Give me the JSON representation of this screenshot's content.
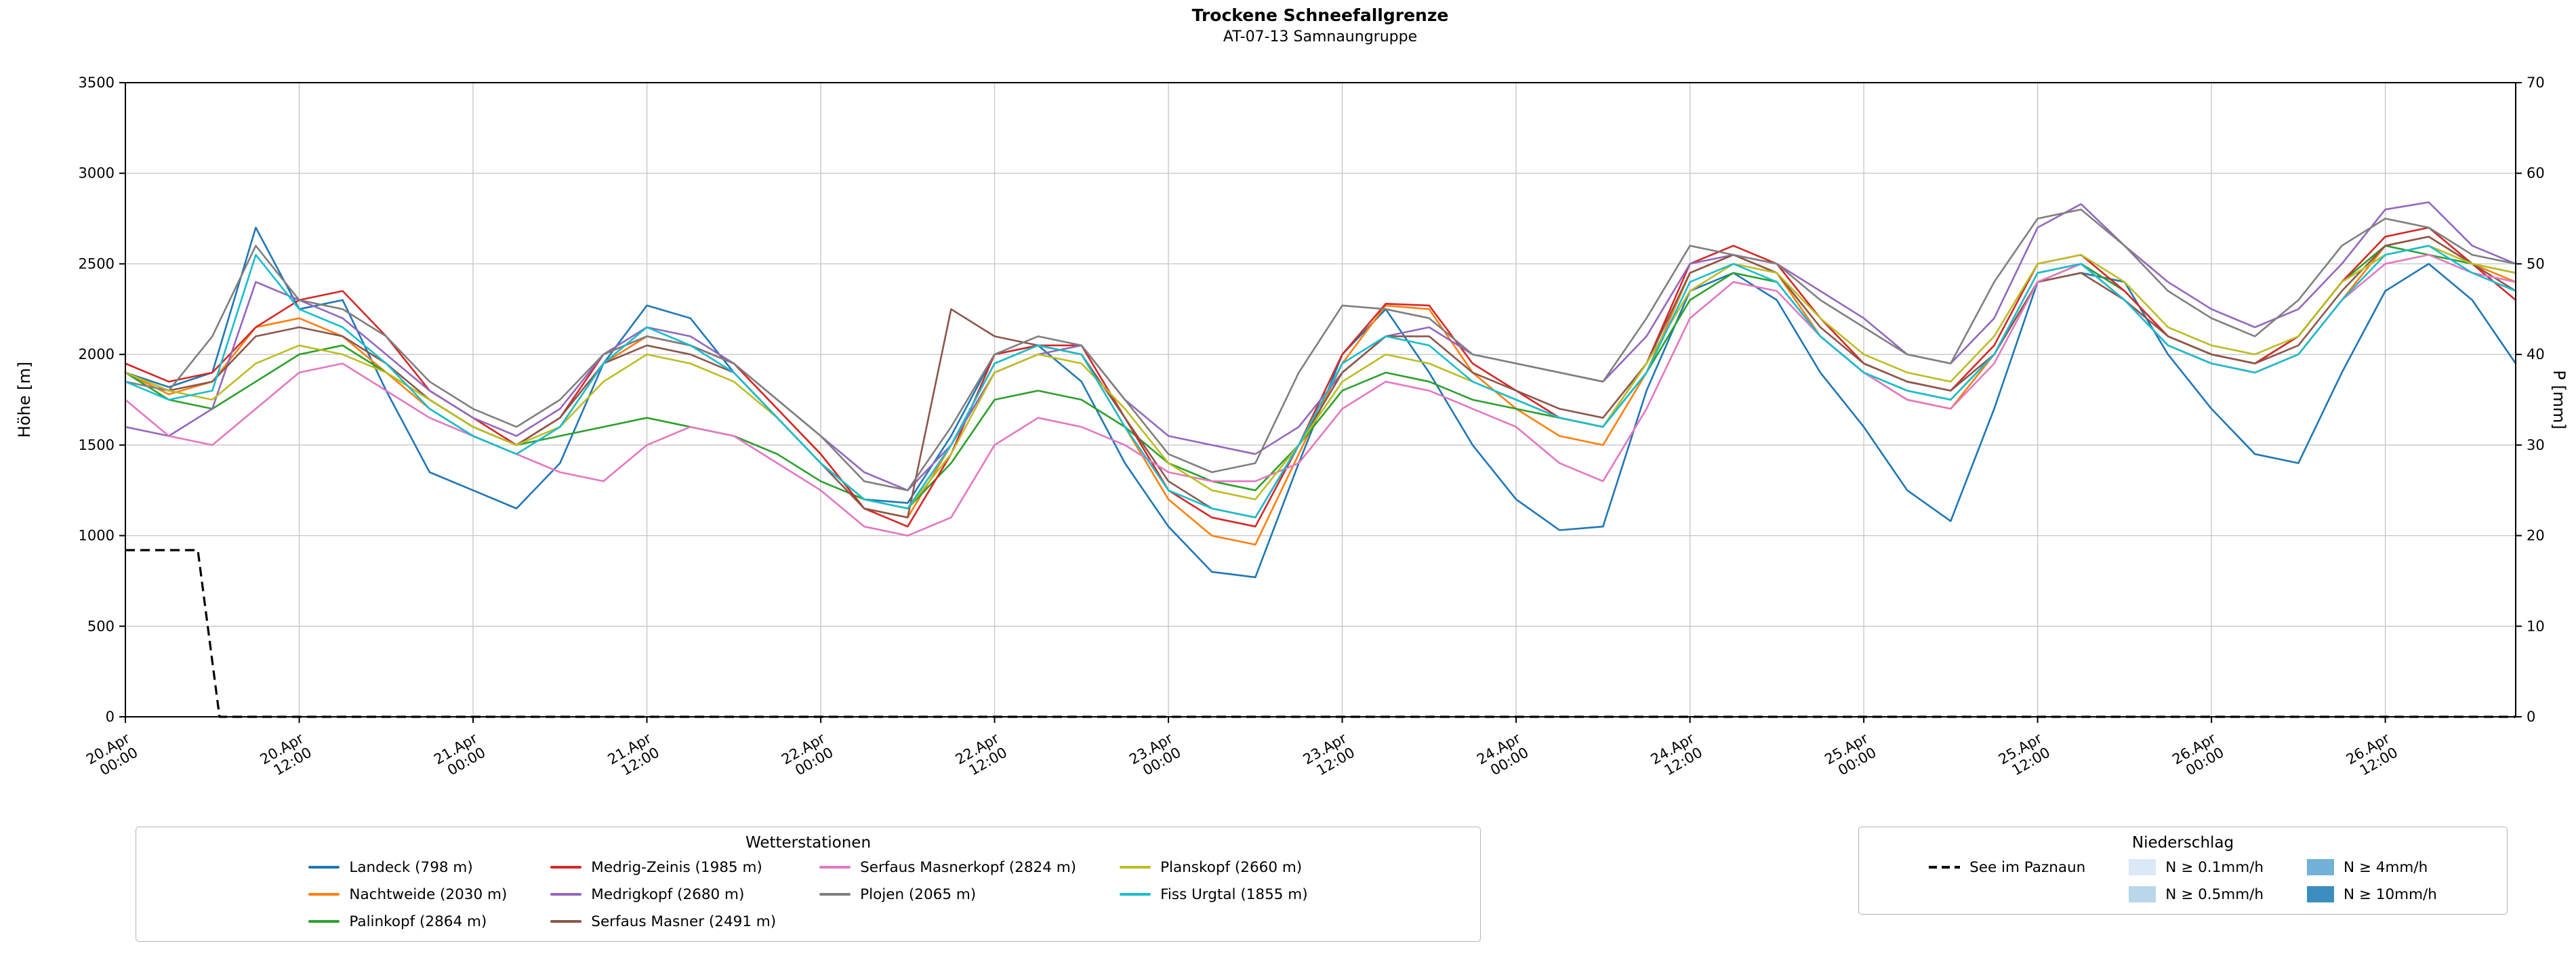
{
  "title": "Trockene Schneefallgrenze",
  "subtitle": "AT-07-13 Samnaungruppe",
  "chart_data": {
    "type": "line",
    "title": "Trockene Schneefallgrenze",
    "subtitle": "AT-07-13 Samnaungruppe",
    "ylabel_left": "Höhe [m]",
    "ylabel_right": "P [mm]",
    "ylim_left": [
      0,
      3500
    ],
    "ylim_right": [
      0,
      70
    ],
    "yticks_left": [
      0,
      500,
      1000,
      1500,
      2000,
      2500,
      3000,
      3500
    ],
    "yticks_right": [
      0,
      10,
      20,
      30,
      40,
      50,
      60,
      70
    ],
    "grid": true,
    "x_unit": "hours since 20.Apr 00:00",
    "x_hours": [
      0,
      3,
      6,
      9,
      12,
      15,
      18,
      21,
      24,
      27,
      30,
      33,
      36,
      39,
      42,
      45,
      48,
      51,
      54,
      57,
      60,
      63,
      66,
      69,
      72,
      75,
      78,
      81,
      84,
      87,
      90,
      93,
      96,
      99,
      102,
      105,
      108,
      111,
      114,
      117,
      120,
      123,
      126,
      129,
      132,
      135,
      138,
      141,
      144,
      147,
      150,
      153,
      156,
      159,
      162,
      165
    ],
    "x_ticks": [
      {
        "h": 0,
        "date": "20.Apr",
        "time": "00:00"
      },
      {
        "h": 12,
        "date": "20.Apr",
        "time": "12:00"
      },
      {
        "h": 24,
        "date": "21.Apr",
        "time": "00:00"
      },
      {
        "h": 36,
        "date": "21.Apr",
        "time": "12:00"
      },
      {
        "h": 48,
        "date": "22.Apr",
        "time": "00:00"
      },
      {
        "h": 60,
        "date": "22.Apr",
        "time": "12:00"
      },
      {
        "h": 72,
        "date": "23.Apr",
        "time": "00:00"
      },
      {
        "h": 84,
        "date": "23.Apr",
        "time": "12:00"
      },
      {
        "h": 96,
        "date": "24.Apr",
        "time": "00:00"
      },
      {
        "h": 108,
        "date": "24.Apr",
        "time": "12:00"
      },
      {
        "h": 120,
        "date": "25.Apr",
        "time": "00:00"
      },
      {
        "h": 132,
        "date": "25.Apr",
        "time": "12:00"
      },
      {
        "h": 144,
        "date": "26.Apr",
        "time": "00:00"
      },
      {
        "h": 156,
        "date": "26.Apr",
        "time": "12:00"
      }
    ],
    "series": [
      {
        "name": "Landeck (798 m)",
        "color": "#1f77b4",
        "values": [
          1900,
          1820,
          1900,
          2700,
          2250,
          2300,
          1800,
          1350,
          1250,
          1150,
          1400,
          1950,
          2270,
          2200,
          1900,
          1650,
          1400,
          1200,
          1180,
          1550,
          2000,
          2050,
          1850,
          1400,
          1050,
          800,
          770,
          1400,
          2000,
          2250,
          1900,
          1500,
          1200,
          1030,
          1050,
          1800,
          2350,
          2450,
          2300,
          1900,
          1600,
          1250,
          1080,
          1700,
          2400,
          2450,
          2400,
          2000,
          1700,
          1450,
          1400,
          1900,
          2350,
          2500,
          2300,
          1950
        ]
      },
      {
        "name": "Nachtweide (2030 m)",
        "color": "#ff7f0e",
        "values": [
          1900,
          1780,
          1850,
          2150,
          2200,
          2100,
          1900,
          1700,
          1550,
          1450,
          1600,
          1950,
          2100,
          2050,
          1950,
          1700,
          1450,
          1150,
          1100,
          1500,
          1950,
          2050,
          2000,
          1600,
          1200,
          1000,
          950,
          1450,
          1950,
          2270,
          2250,
          1900,
          1700,
          1550,
          1500,
          1900,
          2450,
          2550,
          2450,
          2100,
          1900,
          1750,
          1700,
          2000,
          2450,
          2500,
          2300,
          2050,
          1950,
          1900,
          2000,
          2300,
          2600,
          2650,
          2500,
          2400
        ]
      },
      {
        "name": "Palinkopf (2864 m)",
        "color": "#2ca02c",
        "values": [
          1900,
          1750,
          1700,
          1850,
          2000,
          2050,
          1900,
          1750,
          1600,
          1500,
          1550,
          1600,
          1650,
          1600,
          1550,
          1450,
          1300,
          1200,
          1150,
          1400,
          1750,
          1800,
          1750,
          1600,
          1400,
          1300,
          1250,
          1500,
          1800,
          1900,
          1850,
          1750,
          1700,
          1650,
          1600,
          1900,
          2300,
          2450,
          2400,
          2100,
          1900,
          1800,
          1750,
          2000,
          2400,
          2500,
          2350,
          2100,
          2000,
          1950,
          2100,
          2400,
          2600,
          2550,
          2500,
          2450
        ]
      },
      {
        "name": "Medrig-Zeinis (1985 m)",
        "color": "#d62728",
        "values": [
          1950,
          1850,
          1900,
          2150,
          2300,
          2350,
          2100,
          1800,
          1650,
          1500,
          1650,
          2000,
          2100,
          2050,
          1950,
          1700,
          1450,
          1150,
          1050,
          1450,
          2000,
          2050,
          2050,
          1650,
          1250,
          1100,
          1050,
          1500,
          2000,
          2280,
          2270,
          1950,
          1800,
          1650,
          1600,
          1950,
          2500,
          2600,
          2500,
          2200,
          1950,
          1850,
          1800,
          2050,
          2500,
          2550,
          2350,
          2100,
          2000,
          1950,
          2100,
          2400,
          2650,
          2700,
          2500,
          2300
        ]
      },
      {
        "name": "Medrigkopf (2680 m)",
        "color": "#9467bd",
        "values": [
          1600,
          1550,
          1700,
          2400,
          2300,
          2200,
          2000,
          1800,
          1650,
          1550,
          1700,
          2000,
          2150,
          2100,
          1950,
          1750,
          1550,
          1350,
          1250,
          1500,
          1900,
          2000,
          2050,
          1750,
          1550,
          1500,
          1450,
          1600,
          1900,
          2100,
          2150,
          2000,
          1950,
          1900,
          1850,
          2100,
          2500,
          2550,
          2500,
          2350,
          2200,
          2000,
          1950,
          2200,
          2700,
          2830,
          2600,
          2400,
          2250,
          2150,
          2250,
          2500,
          2800,
          2840,
          2600,
          2500
        ]
      },
      {
        "name": "Serfaus Masner (2491 m)",
        "color": "#8c564b",
        "values": [
          1900,
          1800,
          1850,
          2100,
          2150,
          2100,
          1950,
          1750,
          1600,
          1500,
          1650,
          1950,
          2050,
          2000,
          1900,
          1650,
          1400,
          1150,
          1100,
          2250,
          2100,
          2050,
          2000,
          1650,
          1300,
          1150,
          1100,
          1500,
          1900,
          2100,
          2100,
          1900,
          1800,
          1700,
          1650,
          1950,
          2450,
          2550,
          2450,
          2150,
          1950,
          1850,
          1800,
          2000,
          2400,
          2450,
          2300,
          2100,
          2000,
          1950,
          2050,
          2350,
          2600,
          2650,
          2500,
          2350
        ]
      },
      {
        "name": "Serfaus Masnerkopf (2824 m)",
        "color": "#e377c2",
        "values": [
          1750,
          1550,
          1500,
          1700,
          1900,
          1950,
          1800,
          1650,
          1550,
          1450,
          1350,
          1300,
          1500,
          1600,
          1550,
          1400,
          1250,
          1050,
          1000,
          1100,
          1500,
          1650,
          1600,
          1500,
          1350,
          1300,
          1300,
          1400,
          1700,
          1850,
          1800,
          1700,
          1600,
          1400,
          1300,
          1700,
          2200,
          2400,
          2350,
          2100,
          1900,
          1750,
          1700,
          1950,
          2400,
          2500,
          2300,
          2050,
          1950,
          1900,
          2000,
          2300,
          2500,
          2550,
          2450,
          2400
        ]
      },
      {
        "name": "Plojen (2065 m)",
        "color": "#7f7f7f",
        "values": [
          1850,
          1800,
          2100,
          2600,
          2300,
          2250,
          2100,
          1850,
          1700,
          1600,
          1750,
          2000,
          2100,
          2050,
          1950,
          1750,
          1550,
          1300,
          1250,
          1600,
          2000,
          2100,
          2050,
          1750,
          1450,
          1350,
          1400,
          1900,
          2270,
          2250,
          2200,
          2000,
          1950,
          1900,
          1850,
          2200,
          2600,
          2550,
          2500,
          2300,
          2150,
          2000,
          1950,
          2400,
          2750,
          2800,
          2600,
          2350,
          2200,
          2100,
          2300,
          2600,
          2750,
          2700,
          2550,
          2500
        ]
      },
      {
        "name": "Planskopf (2660 m)",
        "color": "#bcbd22",
        "values": [
          1900,
          1800,
          1750,
          1950,
          2050,
          2000,
          1900,
          1750,
          1600,
          1500,
          1600,
          1850,
          2000,
          1950,
          1850,
          1650,
          1400,
          1200,
          1150,
          1450,
          1900,
          2000,
          1950,
          1700,
          1400,
          1250,
          1200,
          1500,
          1850,
          2000,
          1950,
          1850,
          1750,
          1650,
          1600,
          1950,
          2350,
          2500,
          2450,
          2200,
          2000,
          1900,
          1850,
          2100,
          2500,
          2550,
          2400,
          2150,
          2050,
          2000,
          2100,
          2400,
          2550,
          2600,
          2500,
          2450
        ]
      },
      {
        "name": "Fiss Urgtal  (1855 m)",
        "color": "#17becf",
        "values": [
          1850,
          1750,
          1800,
          2550,
          2250,
          2150,
          1950,
          1700,
          1550,
          1450,
          1600,
          1950,
          2150,
          2050,
          1900,
          1650,
          1400,
          1200,
          1150,
          1500,
          1950,
          2050,
          2000,
          1600,
          1250,
          1150,
          1100,
          1500,
          1950,
          2100,
          2050,
          1850,
          1750,
          1650,
          1600,
          1900,
          2400,
          2500,
          2400,
          2100,
          1900,
          1800,
          1750,
          2000,
          2450,
          2500,
          2300,
          2050,
          1950,
          1900,
          2000,
          2300,
          2550,
          2600,
          2450,
          2350
        ]
      }
    ],
    "lake_series": {
      "name": "See im Paznaun",
      "color": "#000000",
      "dashed": true,
      "x": [
        0,
        5,
        6.5,
        165
      ],
      "values": [
        920,
        920,
        0,
        0
      ]
    }
  },
  "legend_stations": {
    "title": "Wetterstationen",
    "columns": [
      [
        0,
        1,
        2
      ],
      [
        3,
        4,
        5
      ],
      [
        6,
        7
      ],
      [
        8,
        9
      ]
    ]
  },
  "legend_precip": {
    "title": "Niederschlag",
    "lake": {
      "label": "See im Paznaun",
      "color": "#000000"
    },
    "patches": [
      {
        "label": "N ≥ 0.1mm/h",
        "color": "#dbe9f6"
      },
      {
        "label": "N ≥ 0.5mm/h",
        "color": "#bad6eb"
      },
      {
        "label": "N ≥ 4mm/h",
        "color": "#73b1d8"
      },
      {
        "label": "N ≥ 10mm/h",
        "color": "#3c8dbf"
      }
    ]
  }
}
